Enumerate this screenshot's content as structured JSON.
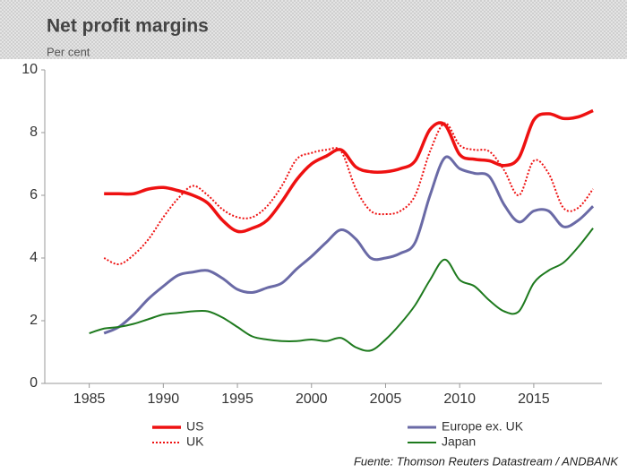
{
  "chart_data": {
    "type": "line",
    "title": "Net profit margins",
    "subtitle": "Per cent",
    "source": "Fuente: Thomson Reuters Datastream / ANDBANK",
    "x": [
      1985,
      1986,
      1987,
      1988,
      1989,
      1990,
      1991,
      1992,
      1993,
      1994,
      1995,
      1996,
      1997,
      1998,
      1999,
      2000,
      2001,
      2002,
      2003,
      2004,
      2005,
      2006,
      2007,
      2008,
      2009,
      2010,
      2011,
      2012,
      2013,
      2014,
      2015,
      2016,
      2017,
      2018,
      2019
    ],
    "xlim": [
      1982,
      2019.6
    ],
    "xticks": [
      1985,
      1990,
      1995,
      2000,
      2005,
      2010,
      2015
    ],
    "ylim": [
      0,
      10
    ],
    "yticks": [
      0,
      2,
      4,
      6,
      8,
      10
    ],
    "grid": false,
    "series": [
      {
        "name": "US",
        "color": "#ee1111",
        "dash": "solid",
        "width": 3.5,
        "values": [
          null,
          6.05,
          6.05,
          6.05,
          6.2,
          6.25,
          6.15,
          6.0,
          5.75,
          5.2,
          4.85,
          4.95,
          5.2,
          5.8,
          6.5,
          7.0,
          7.25,
          7.45,
          6.9,
          6.75,
          6.75,
          6.85,
          7.1,
          8.1,
          8.25,
          7.3,
          7.15,
          7.1,
          6.95,
          7.2,
          8.4,
          8.6,
          8.45,
          8.5,
          8.7
        ]
      },
      {
        "name": "UK",
        "color": "#ee1111",
        "dash": "dotted",
        "width": 2,
        "values": [
          null,
          4.0,
          3.8,
          4.1,
          4.6,
          5.3,
          5.9,
          6.3,
          6.0,
          5.55,
          5.3,
          5.3,
          5.65,
          6.3,
          7.15,
          7.35,
          7.45,
          7.4,
          6.2,
          5.5,
          5.4,
          5.5,
          6.0,
          7.4,
          8.3,
          7.6,
          7.45,
          7.4,
          6.8,
          6.0,
          7.1,
          6.7,
          5.6,
          5.6,
          6.2
        ]
      },
      {
        "name": "Europe ex. UK",
        "color": "#6a6aa6",
        "dash": "solid",
        "width": 3,
        "values": [
          null,
          1.6,
          1.8,
          2.2,
          2.7,
          3.1,
          3.45,
          3.55,
          3.6,
          3.35,
          3.0,
          2.9,
          3.05,
          3.2,
          3.65,
          4.05,
          4.5,
          4.9,
          4.6,
          4.0,
          4.0,
          4.15,
          4.5,
          6.0,
          7.2,
          6.85,
          6.7,
          6.6,
          5.7,
          5.15,
          5.5,
          5.5,
          5.0,
          5.2,
          5.65
        ]
      },
      {
        "name": "Japan",
        "color": "#1e7a1e",
        "dash": "solid",
        "width": 2,
        "values": [
          1.6,
          1.75,
          1.8,
          1.9,
          2.05,
          2.2,
          2.25,
          2.3,
          2.3,
          2.1,
          1.8,
          1.5,
          1.4,
          1.35,
          1.35,
          1.4,
          1.35,
          1.45,
          1.15,
          1.05,
          1.4,
          1.9,
          2.5,
          3.3,
          3.95,
          3.3,
          3.1,
          2.65,
          2.3,
          2.3,
          3.2,
          3.6,
          3.85,
          4.35,
          4.95
        ]
      }
    ]
  }
}
